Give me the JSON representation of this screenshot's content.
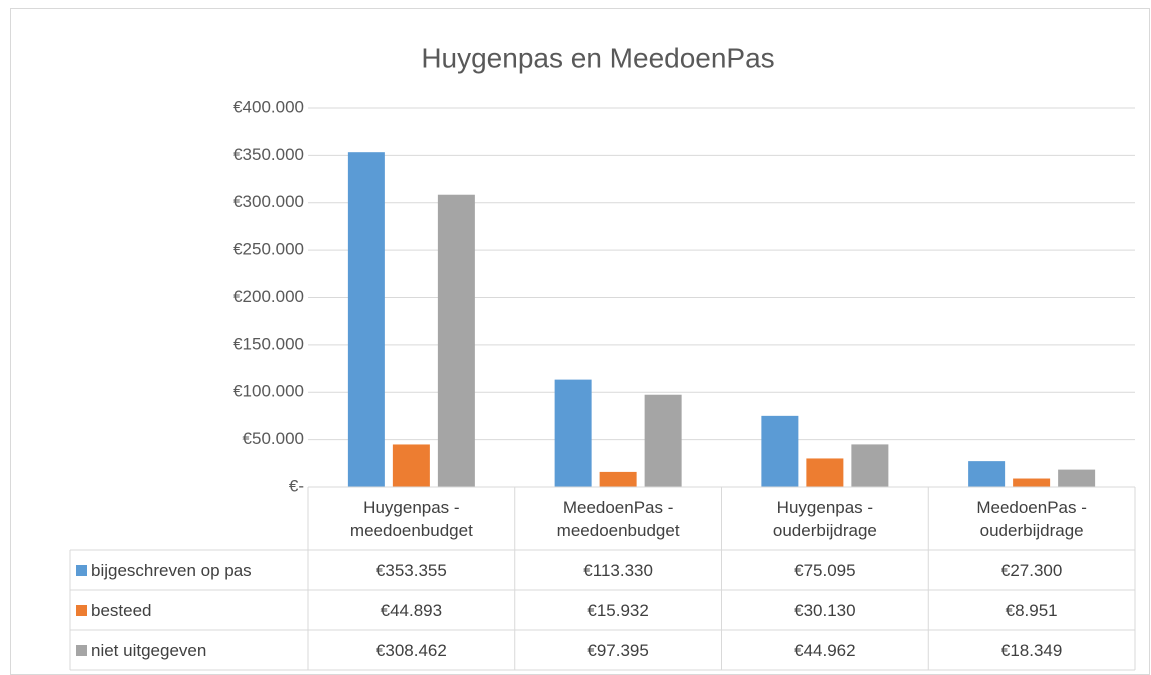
{
  "chart_data": {
    "type": "bar",
    "title": "Huygenpas en MeedoenPas",
    "categories": [
      "Huygenpas - meedoenbudget",
      "MeedoenPas - meedoenbudget",
      "Huygenpas - ouderbijdrage",
      "MeedoenPas - ouderbijdrage"
    ],
    "series": [
      {
        "name": "bijgeschreven op pas",
        "color": "#5b9bd5",
        "values": [
          353355,
          113330,
          75095,
          27300
        ],
        "value_labels": [
          "€353.355",
          "€113.330",
          "€75.095",
          "€27.300"
        ]
      },
      {
        "name": "besteed",
        "color": "#ed7d31",
        "values": [
          44893,
          15932,
          30130,
          8951
        ],
        "value_labels": [
          "€44.893",
          "€15.932",
          "€30.130",
          "€8.951"
        ]
      },
      {
        "name": "niet uitgegeven",
        "color": "#a5a5a5",
        "values": [
          308462,
          97395,
          44962,
          18349
        ],
        "value_labels": [
          "€308.462",
          "€97.395",
          "€44.962",
          "€18.349"
        ]
      }
    ],
    "ylim": [
      0,
      400000
    ],
    "yticks": [
      {
        "value": 0,
        "label": "€-"
      },
      {
        "value": 50000,
        "label": "€50.000"
      },
      {
        "value": 100000,
        "label": "€100.000"
      },
      {
        "value": 150000,
        "label": "€150.000"
      },
      {
        "value": 200000,
        "label": "€200.000"
      },
      {
        "value": 250000,
        "label": "€250.000"
      },
      {
        "value": 300000,
        "label": "€300.000"
      },
      {
        "value": 350000,
        "label": "€350.000"
      },
      {
        "value": 400000,
        "label": "€400.000"
      }
    ],
    "grid": true
  }
}
